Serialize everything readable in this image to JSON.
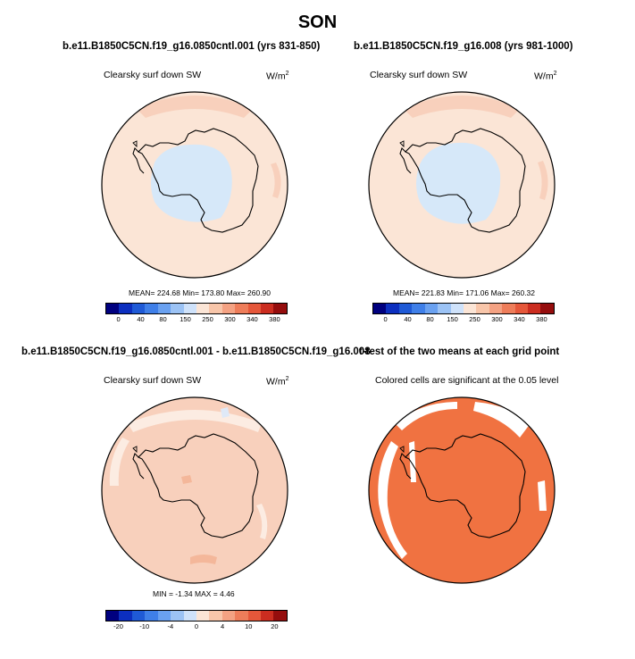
{
  "page_title": "SON",
  "chart_data": [
    {
      "type": "polar-map",
      "title": "b.e11.B1850C5CN.f19_g16.0850cntl.001 (yrs 831-850)",
      "variable_label": "Clearsky surf down SW",
      "units_label": "W/m",
      "units_superscript": "2",
      "stats_text": "MEAN= 224.68  Min= 173.80  Max= 260.90",
      "colorbar": {
        "colors": [
          "#00007f",
          "#0c2fbf",
          "#1f5ad6",
          "#3f7fe8",
          "#6aa1f0",
          "#9cc3f5",
          "#cfe2fa",
          "#fbe5d6",
          "#f8c6aa",
          "#f4a283",
          "#ee7d5a",
          "#e5573a",
          "#cb2d20",
          "#950d0d"
        ],
        "ticks": [
          "0",
          "40",
          "80",
          "150",
          "250",
          "300",
          "340",
          "380"
        ]
      }
    },
    {
      "type": "polar-map",
      "title": "b.e11.B1850C5CN.f19_g16.008 (yrs 981-1000)",
      "variable_label": "Clearsky surf down SW",
      "units_label": "W/m",
      "units_superscript": "2",
      "stats_text": "MEAN= 221.83  Min= 171.06  Max= 260.32",
      "colorbar": {
        "colors": [
          "#00007f",
          "#0c2fbf",
          "#1f5ad6",
          "#3f7fe8",
          "#6aa1f0",
          "#9cc3f5",
          "#cfe2fa",
          "#fbe5d6",
          "#f8c6aa",
          "#f4a283",
          "#ee7d5a",
          "#e5573a",
          "#cb2d20",
          "#950d0d"
        ],
        "ticks": [
          "0",
          "40",
          "80",
          "150",
          "250",
          "300",
          "340",
          "380"
        ]
      }
    },
    {
      "type": "polar-map",
      "title": "b.e11.B1850C5CN.f19_g16.0850cntl.001 - b.e11.B1850C5CN.f19_g16.008",
      "variable_label": "Clearsky surf down SW",
      "units_label": "W/m",
      "units_superscript": "2",
      "stats_text": "MIN =  -1.34 MAX =   4.46",
      "colorbar": {
        "colors": [
          "#00007f",
          "#0c2fbf",
          "#1f5ad6",
          "#3f7fe8",
          "#6aa1f0",
          "#9cc3f5",
          "#cfe2fa",
          "#fbe5d6",
          "#f8c6aa",
          "#f4a283",
          "#ee7d5a",
          "#e5573a",
          "#cb2d20",
          "#950d0d"
        ],
        "ticks": [
          "-20",
          "-10",
          "-4",
          "0",
          "4",
          "10",
          "20"
        ]
      }
    },
    {
      "type": "polar-map",
      "title": "t-test of the two means at each grid point",
      "variable_label": "Colored cells are significant at the 0.05 level",
      "significant_color": "#f07241"
    }
  ],
  "colors": {
    "ocean_warm": "#fbe5d6",
    "ocean_warm_strong": "#f8d0bc",
    "ice_cool": "#d6e8f9",
    "diff_fill": "#f8d0bc",
    "diff_light": "#fcece2"
  }
}
